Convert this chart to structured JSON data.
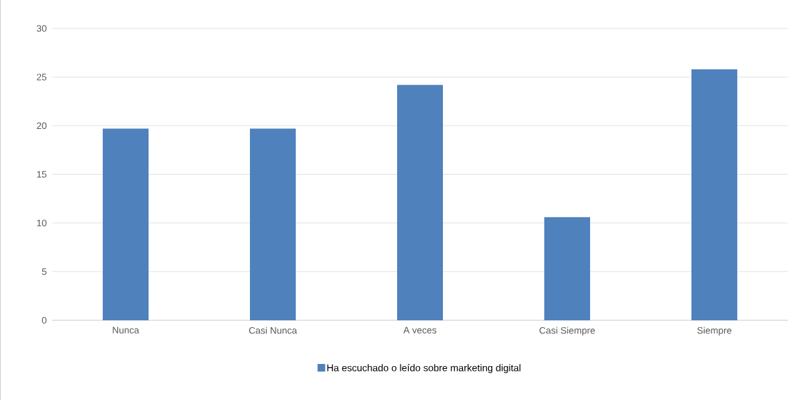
{
  "chart_data": {
    "type": "bar",
    "categories": [
      "Nunca",
      "Casi Nunca",
      "A veces",
      "Casi Siempre",
      "Siempre"
    ],
    "series": [
      {
        "name": "Ha escuchado o leído sobre marketing digital",
        "color": "#4f81bd",
        "values": [
          19.7,
          19.7,
          24.2,
          10.6,
          25.8
        ]
      }
    ],
    "ylim": [
      0,
      30
    ],
    "yticks": [
      0,
      5,
      10,
      15,
      20,
      25,
      30
    ],
    "grid": "y",
    "legend": "bottom"
  }
}
